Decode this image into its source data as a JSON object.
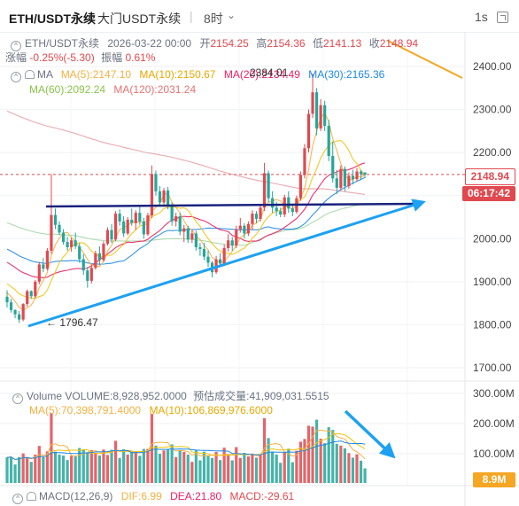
{
  "header": {
    "symbol": "ETH/USDT永续",
    "symbol_alt": "大门USDT永续",
    "interval": "8时",
    "refresh": "1s"
  },
  "ohlc": {
    "symbol": "ETH/USDT永续",
    "datetime": "2026-03-22 00:00",
    "open_label": "开",
    "open": "2154.25",
    "high_label": "高",
    "high": "2154.36",
    "low_label": "低",
    "low": "2141.13",
    "close_label": "收",
    "close": "2148.94",
    "change_label": "涨幅",
    "change": "-0.25%(-5.30)",
    "amp_label": "振幅",
    "amp": "0.61%"
  },
  "ma": {
    "title": "MA",
    "ma5": "MA(5):2147.10",
    "ma10": "MA(10):2150.67",
    "ma20": "MA(20):2134.49",
    "ma30": "MA(30):2165.36",
    "ma60": "MA(60):2092.24",
    "ma120": "MA(120):2031.24"
  },
  "annotations": {
    "high": "2384.01",
    "low": "1796.47"
  },
  "price_tag": "2148.94",
  "countdown": "06:17:42",
  "volume_legend": {
    "main": "Volume  VOLUME:8,928,952.0000",
    "est": "预估成交量:41,909,031.5515",
    "ma5": "MA(5):70,398,791.4000",
    "ma10": "MA(10):106,869,976.6000"
  },
  "vol_tag": "8.9M",
  "macd": {
    "title": "MACD(12,26,9)",
    "dif": "DIF:6.99",
    "dea": "DEA:21.80",
    "macd": "MACD:-29.61"
  },
  "colors": {
    "up": "#e0494f",
    "down": "#26a69a",
    "ma5": "#f5b041",
    "ma10": "#f1c40f",
    "ma20": "#e91e63",
    "ma30": "#1e88e5",
    "ma60": "#a5d6a7",
    "ma120": "#e8a0a8",
    "trend_up": "#1da1f2",
    "resistance": "#1a237e",
    "trend_down": "#f5a623"
  },
  "chart_data": {
    "type": "candlestick",
    "price_axis": {
      "ticks": [
        "2400.00",
        "2300.00",
        "2200.00",
        "2100.00",
        "2000.00",
        "1900.00",
        "1800.00",
        "1700.00"
      ],
      "ylim": [
        1670,
        2440
      ]
    },
    "volume_axis": {
      "ticks": [
        "300.00M",
        "200.00M",
        "100.00M"
      ]
    },
    "candles": [
      [
        1865,
        1880,
        1840,
        1852
      ],
      [
        1852,
        1860,
        1828,
        1834
      ],
      [
        1834,
        1836,
        1815,
        1824
      ],
      [
        1824,
        1832,
        1804,
        1812
      ],
      [
        1812,
        1850,
        1808,
        1848
      ],
      [
        1848,
        1882,
        1842,
        1878
      ],
      [
        1878,
        1880,
        1860,
        1866
      ],
      [
        1866,
        1904,
        1862,
        1900
      ],
      [
        1900,
        1946,
        1894,
        1940
      ],
      [
        1940,
        1955,
        1922,
        1930
      ],
      [
        1930,
        1978,
        1926,
        1972
      ],
      [
        1972,
        2150,
        1965,
        2055
      ],
      [
        2055,
        2070,
        2022,
        2032
      ],
      [
        2032,
        2040,
        2008,
        2014
      ],
      [
        2014,
        2022,
        1986,
        1992
      ],
      [
        1992,
        2004,
        1972,
        1980
      ],
      [
        1980,
        2002,
        1970,
        1996
      ],
      [
        1996,
        2014,
        1976,
        1982
      ],
      [
        1982,
        1990,
        1944,
        1952
      ],
      [
        1952,
        1964,
        1916,
        1926
      ],
      [
        1926,
        1934,
        1886,
        1902
      ],
      [
        1902,
        1940,
        1896,
        1932
      ],
      [
        1932,
        1972,
        1928,
        1966
      ],
      [
        1966,
        1982,
        1938,
        1950
      ],
      [
        1950,
        1994,
        1946,
        1988
      ],
      [
        1988,
        2026,
        1984,
        2020
      ],
      [
        2020,
        2034,
        1990,
        1998
      ],
      [
        1998,
        2064,
        1994,
        2058
      ],
      [
        2058,
        2068,
        2030,
        2040
      ],
      [
        2040,
        2052,
        2004,
        2012
      ],
      [
        2012,
        2050,
        2008,
        2044
      ],
      [
        2044,
        2070,
        2030,
        2036
      ],
      [
        2036,
        2066,
        2020,
        2060
      ],
      [
        2060,
        2074,
        2032,
        2040
      ],
      [
        2040,
        2048,
        2000,
        2010
      ],
      [
        2010,
        2060,
        2006,
        2054
      ],
      [
        2054,
        2170,
        2048,
        2150
      ],
      [
        2150,
        2158,
        2100,
        2110
      ],
      [
        2110,
        2122,
        2076,
        2084
      ],
      [
        2084,
        2118,
        2074,
        2112
      ],
      [
        2112,
        2120,
        2068,
        2076
      ],
      [
        2076,
        2084,
        2030,
        2040
      ],
      [
        2040,
        2060,
        2028,
        2052
      ],
      [
        2052,
        2060,
        2008,
        2016
      ],
      [
        2016,
        2032,
        1992,
        2024
      ],
      [
        2024,
        2030,
        1990,
        1998
      ],
      [
        1998,
        2020,
        1990,
        2012
      ],
      [
        2012,
        2018,
        1972,
        1980
      ],
      [
        1980,
        1990,
        1960,
        1976
      ],
      [
        1976,
        1990,
        1950,
        1958
      ],
      [
        1958,
        1972,
        1934,
        1944
      ],
      [
        1944,
        1948,
        1910,
        1922
      ],
      [
        1922,
        1960,
        1918,
        1952
      ],
      [
        1952,
        1966,
        1936,
        1942
      ],
      [
        1942,
        1986,
        1938,
        1978
      ],
      [
        1978,
        2010,
        1970,
        1996
      ],
      [
        1996,
        2004,
        1972,
        1984
      ],
      [
        1984,
        2030,
        1978,
        2022
      ],
      [
        2022,
        2048,
        2014,
        2030
      ],
      [
        2030,
        2036,
        2000,
        2012
      ],
      [
        2012,
        2040,
        2006,
        2034
      ],
      [
        2034,
        2066,
        2020,
        2058
      ],
      [
        2058,
        2064,
        2036,
        2046
      ],
      [
        2046,
        2080,
        2040,
        2072
      ],
      [
        2072,
        2176,
        2064,
        2152
      ],
      [
        2152,
        2158,
        2084,
        2094
      ],
      [
        2094,
        2110,
        2060,
        2072
      ],
      [
        2072,
        2086,
        2052,
        2064
      ],
      [
        2064,
        2072,
        2050,
        2056
      ],
      [
        2056,
        2102,
        2050,
        2096
      ],
      [
        2096,
        2110,
        2060,
        2070
      ],
      [
        2070,
        2078,
        2052,
        2062
      ],
      [
        2062,
        2100,
        2058,
        2094
      ],
      [
        2094,
        2156,
        2088,
        2148
      ],
      [
        2148,
        2220,
        2140,
        2210
      ],
      [
        2210,
        2300,
        2200,
        2290
      ],
      [
        2290,
        2384,
        2280,
        2340
      ],
      [
        2340,
        2350,
        2240,
        2256
      ],
      [
        2256,
        2324,
        2250,
        2310
      ],
      [
        2310,
        2320,
        2250,
        2262
      ],
      [
        2262,
        2276,
        2180,
        2192
      ],
      [
        2192,
        2226,
        2130,
        2140
      ],
      [
        2140,
        2160,
        2104,
        2118
      ],
      [
        2118,
        2170,
        2112,
        2162
      ],
      [
        2162,
        2168,
        2110,
        2122
      ],
      [
        2122,
        2154,
        2116,
        2146
      ],
      [
        2146,
        2160,
        2126,
        2138
      ],
      [
        2138,
        2164,
        2132,
        2156
      ],
      [
        2156,
        2160,
        2136,
        2150
      ],
      [
        2154,
        2154,
        2141,
        2149
      ]
    ],
    "volume_ma": true,
    "trendlines": [
      {
        "name": "up-trend",
        "from": [
          "c4",
          1790
        ],
        "to": [
          "end",
          2080
        ],
        "color": "trend_up"
      },
      {
        "name": "resistance",
        "from": [
          "c11",
          2072
        ],
        "to": [
          "end",
          2078
        ],
        "color": "resistance"
      },
      {
        "name": "volume-down",
        "color": "trend_up"
      },
      {
        "name": "down-trend",
        "color": "trend_down"
      }
    ]
  }
}
